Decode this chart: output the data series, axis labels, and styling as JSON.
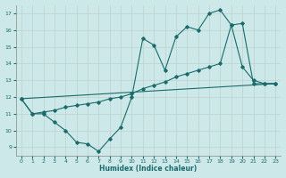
{
  "xlabel": "Humidex (Indice chaleur)",
  "background_color": "#cde8e8",
  "grid_color": "#b0c8c8",
  "line_color": "#1a6b6b",
  "xlim": [
    -0.5,
    23.5
  ],
  "ylim": [
    8.5,
    17.5
  ],
  "xticks": [
    0,
    1,
    2,
    3,
    4,
    5,
    6,
    7,
    8,
    9,
    10,
    11,
    12,
    13,
    14,
    15,
    16,
    17,
    18,
    19,
    20,
    21,
    22,
    23
  ],
  "yticks": [
    9,
    10,
    11,
    12,
    13,
    14,
    15,
    16,
    17
  ],
  "series1_x": [
    0,
    1,
    2,
    3,
    4,
    5,
    6,
    7,
    8,
    9,
    10,
    11,
    12,
    13,
    14,
    15,
    16,
    17,
    18,
    19,
    20,
    21,
    22,
    23
  ],
  "series1_y": [
    11.9,
    11.0,
    11.0,
    10.5,
    10.0,
    9.3,
    9.2,
    8.75,
    9.5,
    10.2,
    12.0,
    15.5,
    15.1,
    13.6,
    15.6,
    16.2,
    16.0,
    17.0,
    17.2,
    16.3,
    13.8,
    13.0,
    12.8,
    12.8
  ],
  "series2_x": [
    0,
    1,
    2,
    3,
    4,
    5,
    6,
    7,
    8,
    9,
    10,
    11,
    12,
    13,
    14,
    15,
    16,
    17,
    18,
    19,
    20,
    21,
    22,
    23
  ],
  "series2_y": [
    11.9,
    11.0,
    11.1,
    11.2,
    11.4,
    11.5,
    11.6,
    11.7,
    11.9,
    12.0,
    12.2,
    12.5,
    12.7,
    12.9,
    13.2,
    13.4,
    13.6,
    13.8,
    14.0,
    16.3,
    16.4,
    12.8,
    12.8,
    12.8
  ],
  "series3_x": [
    0,
    23
  ],
  "series3_y": [
    11.9,
    12.8
  ]
}
